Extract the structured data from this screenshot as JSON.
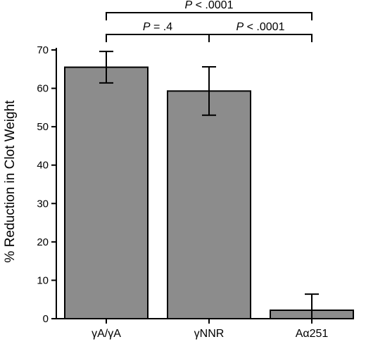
{
  "chart_data": {
    "type": "bar",
    "ylabel": "% Reduction in Clot Weight",
    "xlabel": "",
    "ylim": [
      0,
      70
    ],
    "yticks": [
      0,
      10,
      20,
      30,
      40,
      50,
      60,
      70
    ],
    "categories": [
      "γA/γA",
      "γNNR",
      "Aα251"
    ],
    "values": [
      65.5,
      59.3,
      2.2
    ],
    "errors": [
      4.1,
      6.3,
      4.2
    ],
    "bar_color": "#8c8c8c",
    "comparisons": [
      {
        "from": 0,
        "to": 1,
        "label_italic": "P",
        "label_rest": " = .4",
        "level": 1
      },
      {
        "from": 1,
        "to": 2,
        "label_italic": "P",
        "label_rest": " < .0001",
        "level": 1
      },
      {
        "from": 0,
        "to": 2,
        "label_italic": "P",
        "label_rest": " < .0001",
        "level": 2
      }
    ]
  }
}
